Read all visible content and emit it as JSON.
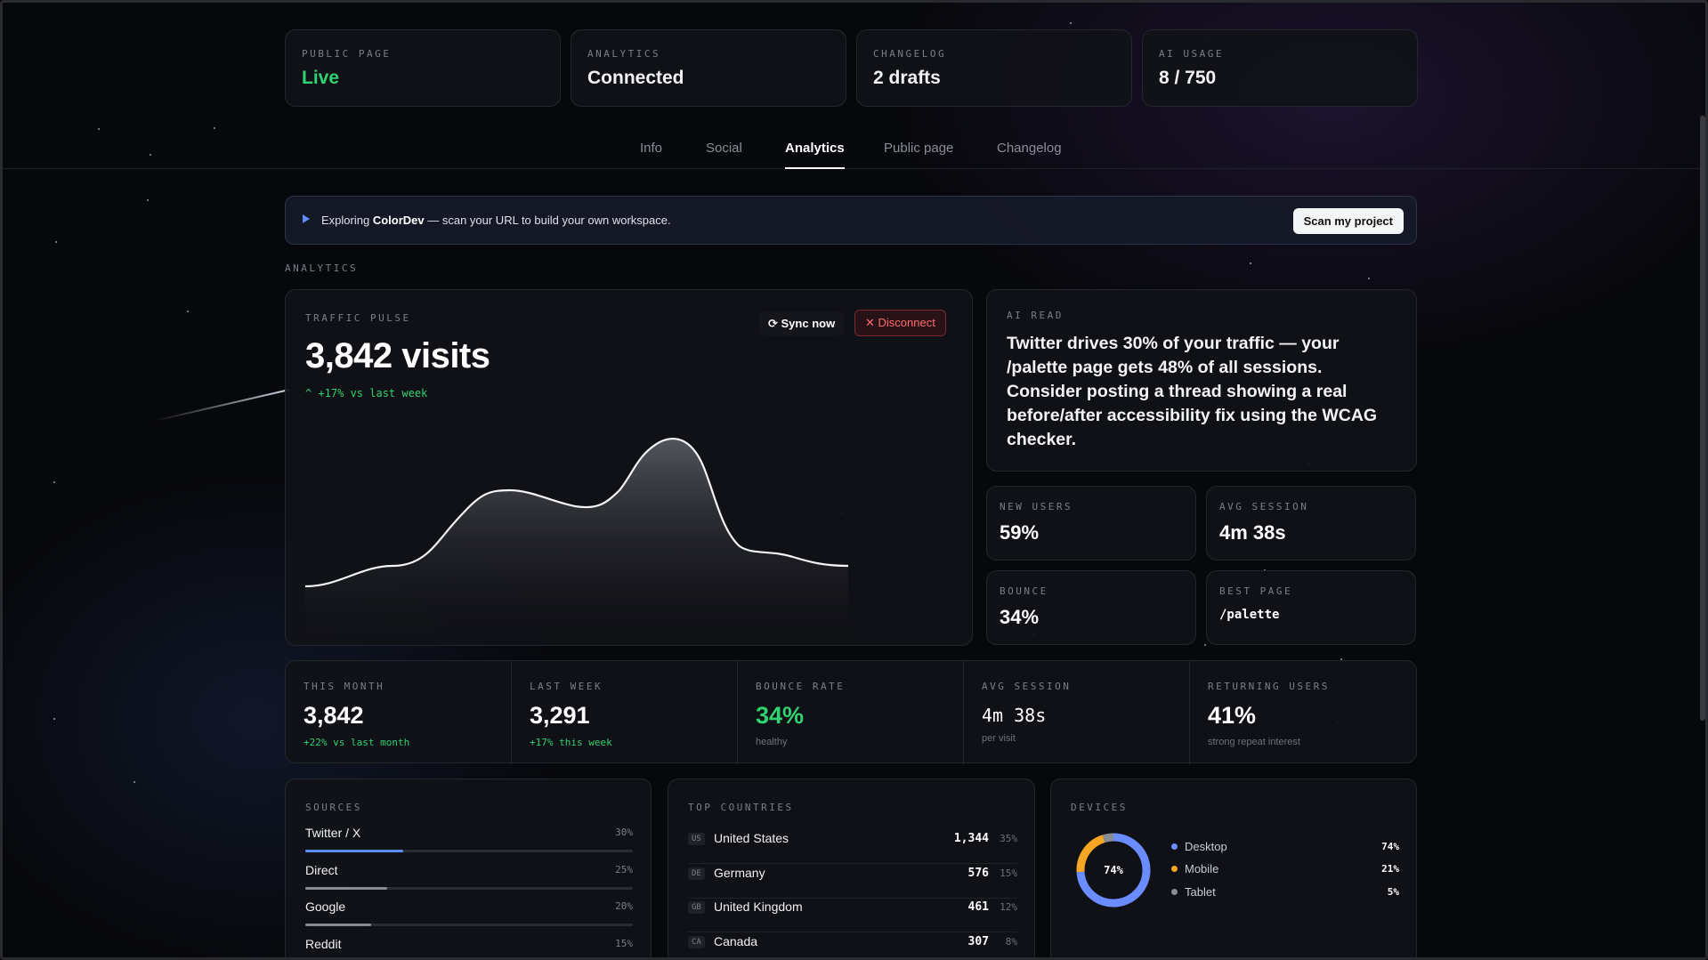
{
  "top_cards": [
    {
      "label": "PUBLIC PAGE",
      "value": "Live"
    },
    {
      "label": "ANALYTICS",
      "value": "Connected"
    },
    {
      "label": "CHANGELOG",
      "value": "2 drafts"
    },
    {
      "label": "AI USAGE",
      "value": "8 / 750"
    }
  ],
  "tabs": [
    "Info",
    "Social",
    "Analytics",
    "Public page",
    "Changelog"
  ],
  "active_tab": "Analytics",
  "banner": {
    "prefix": "Exploring ",
    "project": "ColorDev",
    "suffix": " — scan your URL to build your own workspace.",
    "button": "Scan my project"
  },
  "section_label": "ANALYTICS",
  "traffic": {
    "label": "TRAFFIC PULSE",
    "value": "3,842 visits",
    "delta": "+17% vs last week",
    "sync_label": "Sync now",
    "disconnect_label": "Disconnect"
  },
  "ai_read": {
    "label": "AI READ",
    "text": "Twitter drives 30% of your traffic — your /palette page gets 48% of all sessions. Consider posting a thread showing a real before/after accessibility fix using the WCAG checker."
  },
  "mini_stats": [
    {
      "label": "NEW USERS",
      "value": "59%"
    },
    {
      "label": "AVG SESSION",
      "value": "4m 38s"
    },
    {
      "label": "BOUNCE",
      "value": "34%"
    },
    {
      "label": "BEST PAGE",
      "value": "/palette"
    }
  ],
  "stats": [
    {
      "label": "THIS MONTH",
      "value": "3,842",
      "sub": "+22% vs last month"
    },
    {
      "label": "LAST WEEK",
      "value": "3,291",
      "sub": "+17% this week"
    },
    {
      "label": "BOUNCE RATE",
      "value": "34%",
      "sub": "healthy"
    },
    {
      "label": "AVG SESSION",
      "value": "4m 38s",
      "sub": "per visit"
    },
    {
      "label": "RETURNING USERS",
      "value": "41%",
      "sub": "strong repeat interest"
    }
  ],
  "sources": {
    "label": "SOURCES",
    "items": [
      {
        "name": "Twitter / X",
        "pct": "30%",
        "value": 30,
        "color": "#5d8cff"
      },
      {
        "name": "Direct",
        "pct": "25%",
        "value": 25,
        "color": "#8a8c94"
      },
      {
        "name": "Google",
        "pct": "20%",
        "value": 20,
        "color": "#8a8c94"
      },
      {
        "name": "Reddit",
        "pct": "15%",
        "value": 15,
        "color": "#8a8c94"
      }
    ]
  },
  "countries": {
    "label": "TOP COUNTRIES",
    "items": [
      {
        "code": "US",
        "name": "United States",
        "count": "1,344",
        "pct": "35%"
      },
      {
        "code": "DE",
        "name": "Germany",
        "count": "576",
        "pct": "15%"
      },
      {
        "code": "GB",
        "name": "United Kingdom",
        "count": "461",
        "pct": "12%"
      },
      {
        "code": "CA",
        "name": "Canada",
        "count": "307",
        "pct": "8%"
      }
    ]
  },
  "devices": {
    "label": "DEVICES",
    "center": "74%",
    "items": [
      {
        "name": "Desktop",
        "pct": "74%",
        "value": 74,
        "color": "#6b8cff"
      },
      {
        "name": "Mobile",
        "pct": "21%",
        "value": 21,
        "color": "#f5a623"
      },
      {
        "name": "Tablet",
        "pct": "5%",
        "value": 5,
        "color": "#8a8c94"
      }
    ]
  },
  "colors": {
    "green": "#2fd36f",
    "accent": "#5d8cff",
    "danger": "#ff6b6b"
  },
  "icons": {
    "sync": "refresh-icon",
    "disconnect": "close-icon",
    "banner": "play-icon",
    "delta": "chevron-up-icon"
  }
}
